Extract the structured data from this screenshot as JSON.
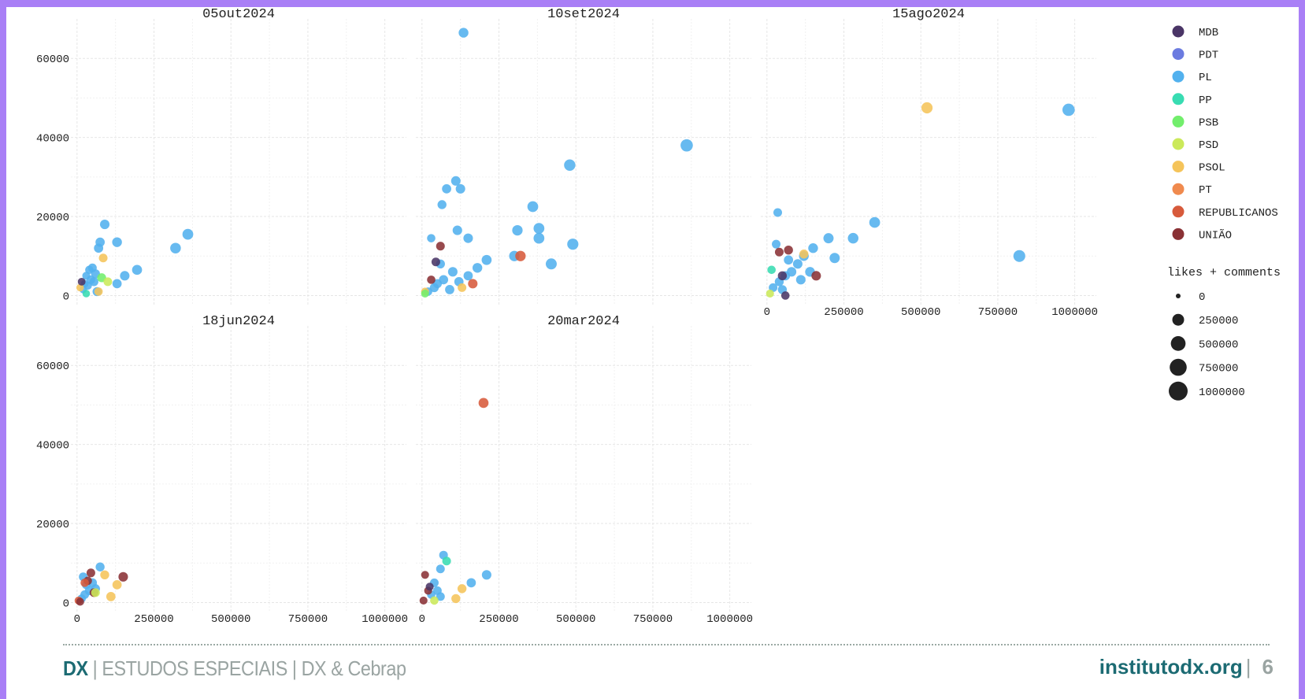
{
  "chart_data": {
    "type": "scatter",
    "facets": [
      {
        "label": "05out2024",
        "points": [
          {
            "x": 20000,
            "y": 1500,
            "party": "PL",
            "size": 20000
          },
          {
            "x": 25000,
            "y": 3000,
            "party": "PL",
            "size": 25000
          },
          {
            "x": 30000,
            "y": 5000,
            "party": "PL",
            "size": 30000
          },
          {
            "x": 35000,
            "y": 2500,
            "party": "PL",
            "size": 35000
          },
          {
            "x": 40000,
            "y": 6500,
            "party": "PL",
            "size": 40000
          },
          {
            "x": 45000,
            "y": 4000,
            "party": "PL",
            "size": 45000
          },
          {
            "x": 50000,
            "y": 7000,
            "party": "PL",
            "size": 50000
          },
          {
            "x": 55000,
            "y": 3500,
            "party": "PL",
            "size": 55000
          },
          {
            "x": 60000,
            "y": 5500,
            "party": "PL",
            "size": 60000
          },
          {
            "x": 65000,
            "y": 1000,
            "party": "PL",
            "size": 60000
          },
          {
            "x": 70000,
            "y": 12000,
            "party": "PL",
            "size": 70000
          },
          {
            "x": 75000,
            "y": 13500,
            "party": "PL",
            "size": 70000
          },
          {
            "x": 90000,
            "y": 18000,
            "party": "PL",
            "size": 80000
          },
          {
            "x": 130000,
            "y": 13500,
            "party": "PL",
            "size": 90000
          },
          {
            "x": 130000,
            "y": 3000,
            "party": "PL",
            "size": 70000
          },
          {
            "x": 155000,
            "y": 5000,
            "party": "PL",
            "size": 80000
          },
          {
            "x": 195000,
            "y": 6500,
            "party": "PL",
            "size": 100000
          },
          {
            "x": 320000,
            "y": 12000,
            "party": "PL",
            "size": 130000
          },
          {
            "x": 360000,
            "y": 15500,
            "party": "PL",
            "size": 140000
          },
          {
            "x": 10000,
            "y": 2000,
            "party": "PSOL",
            "size": 20000
          },
          {
            "x": 70000,
            "y": 1000,
            "party": "PSOL",
            "size": 40000
          },
          {
            "x": 85000,
            "y": 9500,
            "party": "PSOL",
            "size": 50000
          },
          {
            "x": 80000,
            "y": 4500,
            "party": "PSB",
            "size": 60000
          },
          {
            "x": 100000,
            "y": 3500,
            "party": "PSD",
            "size": 50000
          },
          {
            "x": 15000,
            "y": 3500,
            "party": "MDB",
            "size": 25000
          },
          {
            "x": 30000,
            "y": 500,
            "party": "PP",
            "size": 20000
          }
        ]
      },
      {
        "label": "10set2024",
        "points": [
          {
            "x": 135000,
            "y": 66500,
            "party": "PL",
            "size": 90000
          },
          {
            "x": 860000,
            "y": 38000,
            "party": "PL",
            "size": 230000
          },
          {
            "x": 480000,
            "y": 33000,
            "party": "PL",
            "size": 170000
          },
          {
            "x": 110000,
            "y": 29000,
            "party": "PL",
            "size": 80000
          },
          {
            "x": 80000,
            "y": 27000,
            "party": "PL",
            "size": 70000
          },
          {
            "x": 125000,
            "y": 27000,
            "party": "PL",
            "size": 80000
          },
          {
            "x": 65000,
            "y": 23000,
            "party": "PL",
            "size": 60000
          },
          {
            "x": 360000,
            "y": 22500,
            "party": "PL",
            "size": 140000
          },
          {
            "x": 380000,
            "y": 17000,
            "party": "PL",
            "size": 140000
          },
          {
            "x": 380000,
            "y": 14500,
            "party": "PL",
            "size": 140000
          },
          {
            "x": 310000,
            "y": 16500,
            "party": "PL",
            "size": 120000
          },
          {
            "x": 115000,
            "y": 16500,
            "party": "PL",
            "size": 80000
          },
          {
            "x": 150000,
            "y": 14500,
            "party": "PL",
            "size": 80000
          },
          {
            "x": 30000,
            "y": 14500,
            "party": "PL",
            "size": 40000
          },
          {
            "x": 490000,
            "y": 13000,
            "party": "PL",
            "size": 160000
          },
          {
            "x": 300000,
            "y": 10000,
            "party": "PL",
            "size": 120000
          },
          {
            "x": 420000,
            "y": 8000,
            "party": "PL",
            "size": 150000
          },
          {
            "x": 210000,
            "y": 9000,
            "party": "PL",
            "size": 100000
          },
          {
            "x": 180000,
            "y": 7000,
            "party": "PL",
            "size": 90000
          },
          {
            "x": 100000,
            "y": 6000,
            "party": "PL",
            "size": 80000
          },
          {
            "x": 70000,
            "y": 4000,
            "party": "PL",
            "size": 70000
          },
          {
            "x": 50000,
            "y": 3000,
            "party": "PL",
            "size": 60000
          },
          {
            "x": 40000,
            "y": 2000,
            "party": "PL",
            "size": 60000
          },
          {
            "x": 150000,
            "y": 5000,
            "party": "PL",
            "size": 70000
          },
          {
            "x": 90000,
            "y": 1500,
            "party": "PL",
            "size": 70000
          },
          {
            "x": 60000,
            "y": 8000,
            "party": "PL",
            "size": 60000
          },
          {
            "x": 120000,
            "y": 3500,
            "party": "PL",
            "size": 70000
          },
          {
            "x": 20000,
            "y": 1000,
            "party": "PL",
            "size": 40000
          },
          {
            "x": 320000,
            "y": 10000,
            "party": "REPUBLICANOS",
            "size": 120000
          },
          {
            "x": 165000,
            "y": 3000,
            "party": "REPUBLICANOS",
            "size": 80000
          },
          {
            "x": 60000,
            "y": 12500,
            "party": "UNIÃO",
            "size": 50000
          },
          {
            "x": 45000,
            "y": 8500,
            "party": "MDB",
            "size": 50000
          },
          {
            "x": 30000,
            "y": 4000,
            "party": "UNIÃO",
            "size": 40000
          },
          {
            "x": 10000,
            "y": 1000,
            "party": "PSOL",
            "size": 30000
          },
          {
            "x": 10000,
            "y": 500,
            "party": "PSB",
            "size": 30000
          },
          {
            "x": 130000,
            "y": 2000,
            "party": "PSOL",
            "size": 50000
          }
        ]
      },
      {
        "label": "15ago2024",
        "points": [
          {
            "x": 980000,
            "y": 47000,
            "party": "PL",
            "size": 230000
          },
          {
            "x": 520000,
            "y": 47500,
            "party": "PSOL",
            "size": 160000
          },
          {
            "x": 820000,
            "y": 10000,
            "party": "PL",
            "size": 200000
          },
          {
            "x": 350000,
            "y": 18500,
            "party": "PL",
            "size": 140000
          },
          {
            "x": 280000,
            "y": 14500,
            "party": "PL",
            "size": 130000
          },
          {
            "x": 200000,
            "y": 14500,
            "party": "PL",
            "size": 110000
          },
          {
            "x": 220000,
            "y": 9500,
            "party": "PL",
            "size": 110000
          },
          {
            "x": 35000,
            "y": 21000,
            "party": "PL",
            "size": 50000
          },
          {
            "x": 30000,
            "y": 13000,
            "party": "PL",
            "size": 50000
          },
          {
            "x": 150000,
            "y": 12000,
            "party": "PL",
            "size": 90000
          },
          {
            "x": 120000,
            "y": 10000,
            "party": "PL",
            "size": 90000
          },
          {
            "x": 100000,
            "y": 8000,
            "party": "PL",
            "size": 80000
          },
          {
            "x": 80000,
            "y": 6000,
            "party": "PL",
            "size": 80000
          },
          {
            "x": 60000,
            "y": 5000,
            "party": "PL",
            "size": 70000
          },
          {
            "x": 40000,
            "y": 3500,
            "party": "PL",
            "size": 60000
          },
          {
            "x": 20000,
            "y": 2000,
            "party": "PL",
            "size": 50000
          },
          {
            "x": 140000,
            "y": 6000,
            "party": "PL",
            "size": 90000
          },
          {
            "x": 110000,
            "y": 4000,
            "party": "PL",
            "size": 80000
          },
          {
            "x": 70000,
            "y": 9000,
            "party": "PL",
            "size": 70000
          },
          {
            "x": 50000,
            "y": 1500,
            "party": "PL",
            "size": 60000
          },
          {
            "x": 160000,
            "y": 5000,
            "party": "UNIÃO",
            "size": 80000
          },
          {
            "x": 70000,
            "y": 11500,
            "party": "UNIÃO",
            "size": 60000
          },
          {
            "x": 40000,
            "y": 11000,
            "party": "UNIÃO",
            "size": 50000
          },
          {
            "x": 50000,
            "y": 5000,
            "party": "MDB",
            "size": 60000
          },
          {
            "x": 15000,
            "y": 6500,
            "party": "PP",
            "size": 40000
          },
          {
            "x": 120000,
            "y": 10500,
            "party": "PSOL",
            "size": 60000
          },
          {
            "x": 10000,
            "y": 500,
            "party": "PSD",
            "size": 30000
          },
          {
            "x": 60000,
            "y": 0,
            "party": "MDB",
            "size": 40000
          }
        ]
      },
      {
        "label": "18jun2024",
        "points": [
          {
            "x": 75000,
            "y": 9000,
            "party": "PL",
            "size": 60000
          },
          {
            "x": 20000,
            "y": 6500,
            "party": "PL",
            "size": 50000
          },
          {
            "x": 30000,
            "y": 4500,
            "party": "PL",
            "size": 50000
          },
          {
            "x": 40000,
            "y": 3000,
            "party": "PL",
            "size": 60000
          },
          {
            "x": 25000,
            "y": 2000,
            "party": "PL",
            "size": 50000
          },
          {
            "x": 50000,
            "y": 5000,
            "party": "PL",
            "size": 60000
          },
          {
            "x": 60000,
            "y": 3500,
            "party": "PL",
            "size": 60000
          },
          {
            "x": 15000,
            "y": 1000,
            "party": "PL",
            "size": 40000
          },
          {
            "x": 45000,
            "y": 7500,
            "party": "UNIÃO",
            "size": 50000
          },
          {
            "x": 150000,
            "y": 6500,
            "party": "UNIÃO",
            "size": 80000
          },
          {
            "x": 35000,
            "y": 5500,
            "party": "UNIÃO",
            "size": 40000
          },
          {
            "x": 55000,
            "y": 2500,
            "party": "UNIÃO",
            "size": 50000
          },
          {
            "x": 90000,
            "y": 7000,
            "party": "PSOL",
            "size": 60000
          },
          {
            "x": 130000,
            "y": 4500,
            "party": "PSOL",
            "size": 70000
          },
          {
            "x": 110000,
            "y": 1500,
            "party": "PSOL",
            "size": 70000
          },
          {
            "x": 60000,
            "y": 2500,
            "party": "PSD",
            "size": 50000
          },
          {
            "x": 5000,
            "y": 500,
            "party": "REPUBLICANOS",
            "size": 30000
          },
          {
            "x": 25000,
            "y": 5000,
            "party": "REPUBLICANOS",
            "size": 40000
          },
          {
            "x": 10000,
            "y": 200,
            "party": "UNIÃO",
            "size": 30000
          }
        ]
      },
      {
        "label": "20mar2024",
        "points": [
          {
            "x": 200000,
            "y": 50500,
            "party": "REPUBLICANOS",
            "size": 100000
          },
          {
            "x": 70000,
            "y": 12000,
            "party": "PL",
            "size": 50000
          },
          {
            "x": 80000,
            "y": 10500,
            "party": "PP",
            "size": 50000
          },
          {
            "x": 60000,
            "y": 8500,
            "party": "PL",
            "size": 50000
          },
          {
            "x": 210000,
            "y": 7000,
            "party": "PL",
            "size": 80000
          },
          {
            "x": 160000,
            "y": 5000,
            "party": "PL",
            "size": 70000
          },
          {
            "x": 40000,
            "y": 5000,
            "party": "PL",
            "size": 50000
          },
          {
            "x": 50000,
            "y": 3000,
            "party": "PL",
            "size": 50000
          },
          {
            "x": 30000,
            "y": 2000,
            "party": "PL",
            "size": 40000
          },
          {
            "x": 60000,
            "y": 1500,
            "party": "PL",
            "size": 50000
          },
          {
            "x": 130000,
            "y": 3500,
            "party": "PSOL",
            "size": 60000
          },
          {
            "x": 110000,
            "y": 1000,
            "party": "PSOL",
            "size": 60000
          },
          {
            "x": 10000,
            "y": 7000,
            "party": "UNIÃO",
            "size": 30000
          },
          {
            "x": 20000,
            "y": 3000,
            "party": "UNIÃO",
            "size": 30000
          },
          {
            "x": 5000,
            "y": 500,
            "party": "UNIÃO",
            "size": 30000
          },
          {
            "x": 40000,
            "y": 500,
            "party": "PSD",
            "size": 40000
          },
          {
            "x": 25000,
            "y": 4000,
            "party": "MDB",
            "size": 30000
          }
        ]
      }
    ],
    "x_ticks": [
      "0",
      "250000",
      "500000",
      "750000",
      "1000000"
    ],
    "y_ticks": [
      "0",
      "20000",
      "40000",
      "60000"
    ],
    "xlim": [
      -20000,
      1070000
    ],
    "ylim": [
      -2500,
      70000
    ],
    "grid": true,
    "legend": {
      "placement": "right",
      "parties": [
        {
          "name": "MDB",
          "color": "#4a3566"
        },
        {
          "name": "PDT",
          "color": "#6b7be0"
        },
        {
          "name": "PL",
          "color": "#52b1ee"
        },
        {
          "name": "PP",
          "color": "#38dcb2"
        },
        {
          "name": "PSB",
          "color": "#72ee6c"
        },
        {
          "name": "PSD",
          "color": "#cbe95a"
        },
        {
          "name": "PSOL",
          "color": "#f5c45a"
        },
        {
          "name": "PT",
          "color": "#f08a4e"
        },
        {
          "name": "REPUBLICANOS",
          "color": "#d75a3b"
        },
        {
          "name": "UNIÃO",
          "color": "#8a3135"
        }
      ],
      "size_title": "likes + comments",
      "sizes": [
        {
          "label": "0",
          "value": 0
        },
        {
          "label": "250000",
          "value": 250000
        },
        {
          "label": "500000",
          "value": 500000
        },
        {
          "label": "750000",
          "value": 750000
        },
        {
          "label": "1000000",
          "value": 1000000
        }
      ]
    }
  },
  "footer": {
    "brand": "DX",
    "subtitle": " | ESTUDOS ESPECIAIS | DX & Cebrap",
    "site": "institutodx.org",
    "separator": "|",
    "page": "6"
  }
}
